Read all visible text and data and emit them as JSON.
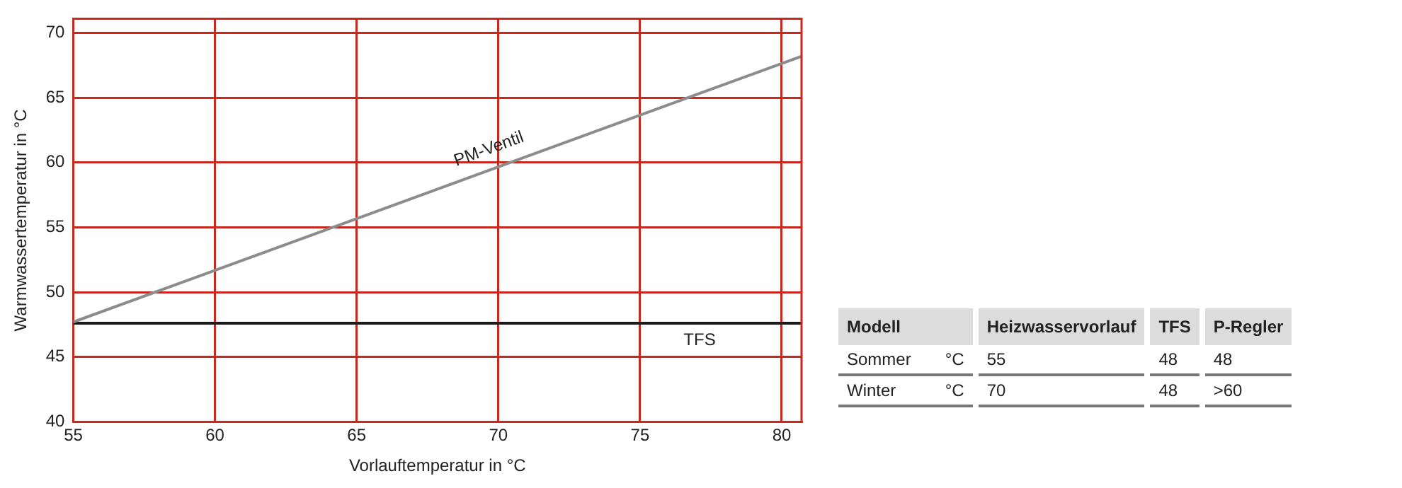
{
  "chart_data": [
    {
      "type": "line",
      "xlabel": "Vorlauftemperatur in °C",
      "ylabel": "Warmwassertemperatur in °C",
      "xlim": [
        55,
        80.7
      ],
      "ylim": [
        40,
        71.1
      ],
      "xticks": [
        55,
        60,
        65,
        70,
        75,
        80
      ],
      "yticks": [
        40,
        45,
        50,
        55,
        60,
        65,
        70
      ],
      "grid": true,
      "legend": false,
      "x": [
        55,
        80.7
      ],
      "series": [
        {
          "name": "PM-Ventil",
          "color": "#8c8c8c",
          "values": [
            47.7,
            68.2
          ]
        },
        {
          "name": "TFS",
          "color": "#1a1a1a",
          "values": [
            47.6,
            47.6
          ]
        }
      ]
    },
    {
      "type": "other",
      "categories": [
        "Modell",
        "Heizwasservorlauf",
        "TFS",
        "P-Regler"
      ],
      "y_categories": [
        "Sommer",
        "Winter"
      ],
      "cell_labels": [
        [
          "°C",
          "55",
          "48",
          "48"
        ],
        [
          "°C",
          "70",
          "48",
          ">60"
        ]
      ]
    }
  ]
}
